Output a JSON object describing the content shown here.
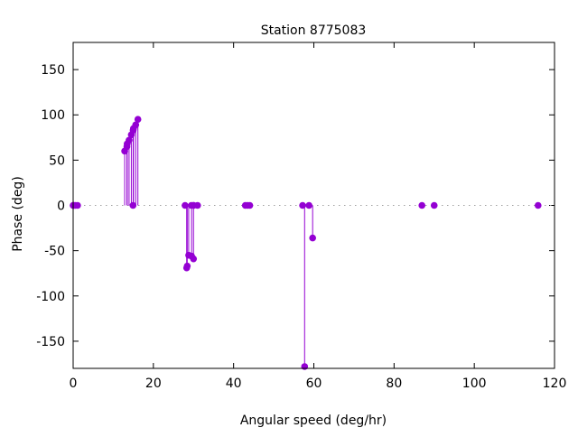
{
  "chart_data": {
    "type": "scatter",
    "style": "impulses with points",
    "title": "Station 8775083",
    "xlabel": "Angular speed (deg/hr)",
    "ylabel": "Phase (deg)",
    "xlim": [
      0,
      120
    ],
    "ylim": [
      -180,
      180
    ],
    "xticks": [
      0,
      20,
      40,
      60,
      80,
      100,
      120
    ],
    "yticks": [
      -150,
      -100,
      -50,
      0,
      50,
      100,
      150
    ],
    "grid": false,
    "zero_line": "dotted",
    "color": "#9400d3",
    "points": [
      [
        0.0,
        0
      ],
      [
        0.04,
        0
      ],
      [
        0.08,
        0
      ],
      [
        0.54,
        0
      ],
      [
        1.1,
        0
      ],
      [
        12.85,
        60
      ],
      [
        13.4,
        65
      ],
      [
        13.47,
        68
      ],
      [
        13.94,
        72
      ],
      [
        14.5,
        78
      ],
      [
        14.92,
        0
      ],
      [
        14.96,
        83
      ],
      [
        15.04,
        85
      ],
      [
        15.6,
        89
      ],
      [
        16.14,
        95
      ],
      [
        27.9,
        0
      ],
      [
        28.3,
        -69
      ],
      [
        28.44,
        -67
      ],
      [
        28.8,
        -55
      ],
      [
        29.46,
        0
      ],
      [
        29.53,
        -56
      ],
      [
        29.96,
        0
      ],
      [
        30.0,
        -59
      ],
      [
        30.08,
        0
      ],
      [
        31.02,
        0
      ],
      [
        42.93,
        0
      ],
      [
        43.48,
        0
      ],
      [
        44.03,
        0
      ],
      [
        57.2,
        0
      ],
      [
        57.7,
        -178
      ],
      [
        58.8,
        0
      ],
      [
        59.7,
        -36
      ],
      [
        86.95,
        0
      ],
      [
        90.0,
        0
      ],
      [
        115.9,
        0
      ]
    ]
  }
}
